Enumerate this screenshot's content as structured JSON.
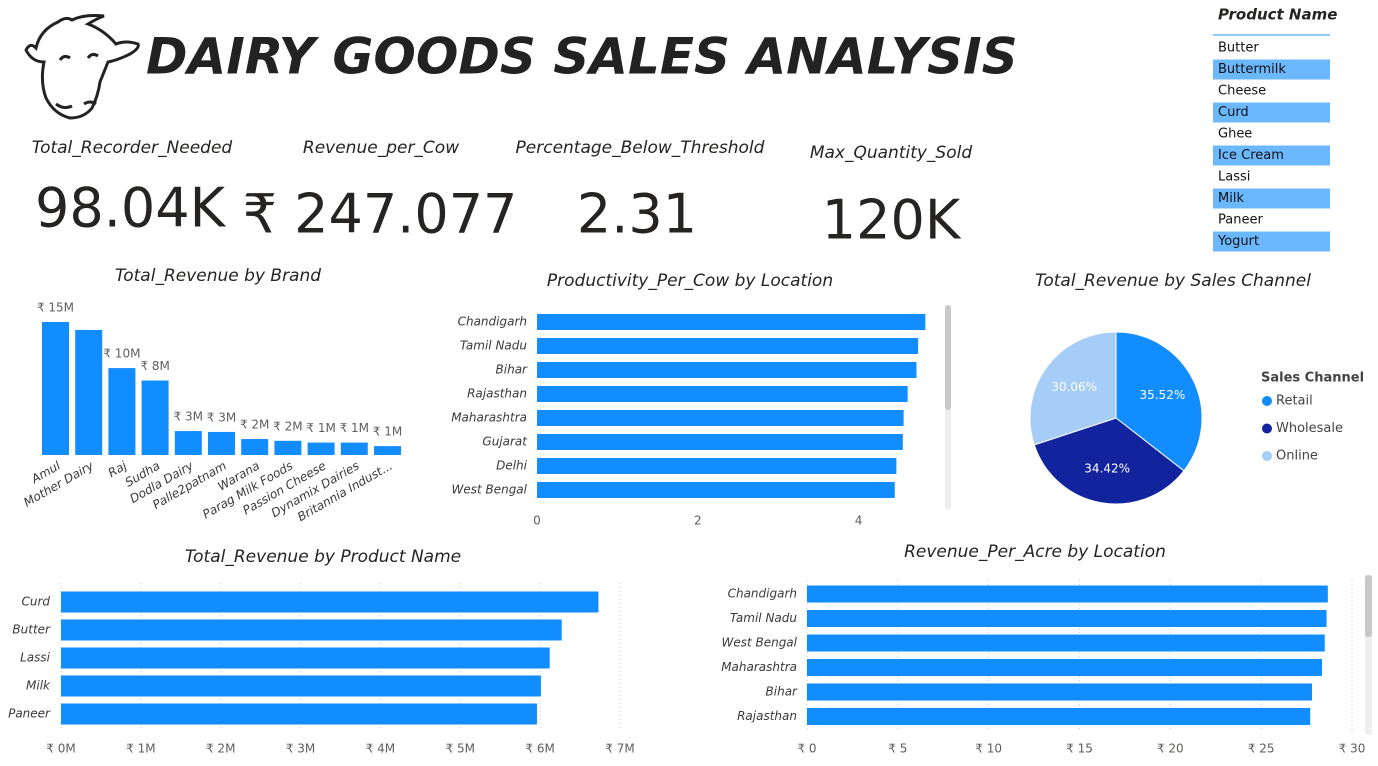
{
  "header": {
    "title": "DAIRY GOODS SALES ANALYSIS"
  },
  "kpis": [
    {
      "label": "Total_Recorder_Needed",
      "value": "98.04K"
    },
    {
      "label": "Revenue_per_Cow",
      "value": "₹ 247.077"
    },
    {
      "label": "Percentage_Below_Threshold",
      "value": "2.31"
    },
    {
      "label": "Max_Quantity_Sold",
      "value": "120K"
    }
  ],
  "slicer": {
    "title": "Product Name",
    "items": [
      "Butter",
      "Buttermilk",
      "Cheese",
      "Curd",
      "Ghee",
      "Ice Cream",
      "Lassi",
      "Milk",
      "Paneer",
      "Yogurt"
    ]
  },
  "chart_data": [
    {
      "type": "bar",
      "title": "Total_Revenue by Brand",
      "categories": [
        "Amul",
        "Mother Dairy",
        "Raj",
        "Sudha",
        "Dodla Dairy",
        "Palle2patnam",
        "Warana",
        "Parag Milk Foods",
        "Passion Cheese",
        "Dynamix Dairies",
        "Britannia Indust..."
      ],
      "values": [
        15,
        14.1,
        9.8,
        8.4,
        2.7,
        2.6,
        1.8,
        1.6,
        1.4,
        1.4,
        1.0
      ],
      "value_labels": [
        "₹ 15M",
        null,
        "₹ 10M",
        "₹ 8M",
        "₹ 3M",
        "₹ 3M",
        "₹ 2M",
        "₹ 2M",
        "₹ 1M",
        "₹ 1M",
        "₹ 1M"
      ],
      "color": "#118DFF"
    },
    {
      "type": "hbar",
      "title": "Productivity_Per_Cow by Location",
      "categories": [
        "Chandigarh",
        "Tamil Nadu",
        "Bihar",
        "Rajasthan",
        "Maharashtra",
        "Gujarat",
        "Delhi",
        "West Bengal"
      ],
      "values": [
        4.83,
        4.74,
        4.72,
        4.61,
        4.56,
        4.55,
        4.47,
        4.45
      ],
      "color": "#118DFF",
      "xlim": [
        0,
        5
      ],
      "xticks": [
        0,
        2,
        4
      ],
      "grid": false
    },
    {
      "type": "pie",
      "title": "Total_Revenue by Sales Channel",
      "legend_title": "Sales Channel",
      "legend": "right",
      "categories": [
        "Retail",
        "Wholesale",
        "Online"
      ],
      "values": [
        35.52,
        34.42,
        30.06
      ],
      "value_labels": [
        "35.52%",
        "34.42%",
        "30.06%"
      ],
      "colors": [
        "#118DFF",
        "#12239E",
        "#A5CDF7"
      ]
    },
    {
      "type": "hbar",
      "title": "Total_Revenue by Product Name",
      "categories": [
        "Curd",
        "Butter",
        "Lassi",
        "Milk",
        "Paneer"
      ],
      "values": [
        6730000,
        6270000,
        6120000,
        6010000,
        5960000
      ],
      "color": "#118DFF",
      "xlim": [
        0,
        7000000
      ],
      "xticks": [
        {
          "value": 0,
          "label": "₹ 0M"
        },
        {
          "value": 1000000,
          "label": "₹ 1M"
        },
        {
          "value": 2000000,
          "label": "₹ 2M"
        },
        {
          "value": 3000000,
          "label": "₹ 3M"
        },
        {
          "value": 4000000,
          "label": "₹ 4M"
        },
        {
          "value": 5000000,
          "label": "₹ 5M"
        },
        {
          "value": 6000000,
          "label": "₹ 6M"
        },
        {
          "value": 7000000,
          "label": "₹ 7M"
        }
      ],
      "grid": true
    },
    {
      "type": "hbar",
      "title": "Revenue_Per_Acre by Location",
      "categories": [
        "Chandigarh",
        "Tamil Nadu",
        "West Bengal",
        "Maharashtra",
        "Bihar",
        "Rajasthan"
      ],
      "values": [
        28.67,
        28.6,
        28.5,
        28.35,
        27.8,
        27.7
      ],
      "color": "#118DFF",
      "xlim": [
        0,
        30
      ],
      "xticks": [
        {
          "value": 0,
          "label": "₹ 0"
        },
        {
          "value": 5,
          "label": "₹ 5"
        },
        {
          "value": 10,
          "label": "₹ 10"
        },
        {
          "value": 15,
          "label": "₹ 15"
        },
        {
          "value": 20,
          "label": "₹ 20"
        },
        {
          "value": 25,
          "label": "₹ 25"
        },
        {
          "value": 30,
          "label": "₹ 30"
        }
      ],
      "grid": true
    }
  ]
}
